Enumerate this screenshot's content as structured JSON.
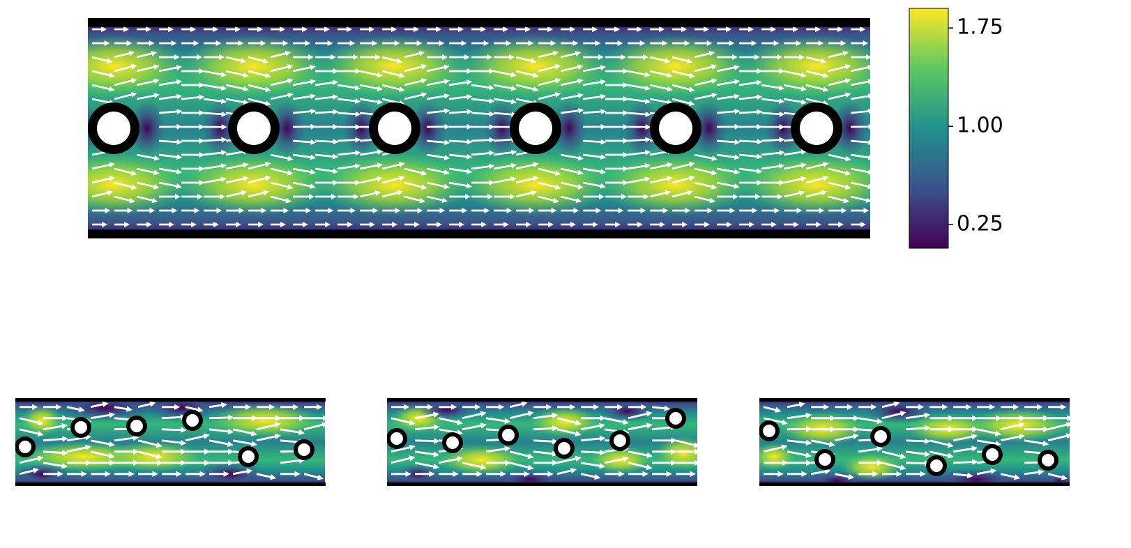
{
  "colorbar": {
    "lim": [
      0.07,
      1.9
    ],
    "ticks": [
      {
        "value": 0.25,
        "label": "0.25"
      },
      {
        "value": 1,
        "label": "1.00"
      },
      {
        "value": 1.75,
        "label": "1.75"
      }
    ]
  }
}
